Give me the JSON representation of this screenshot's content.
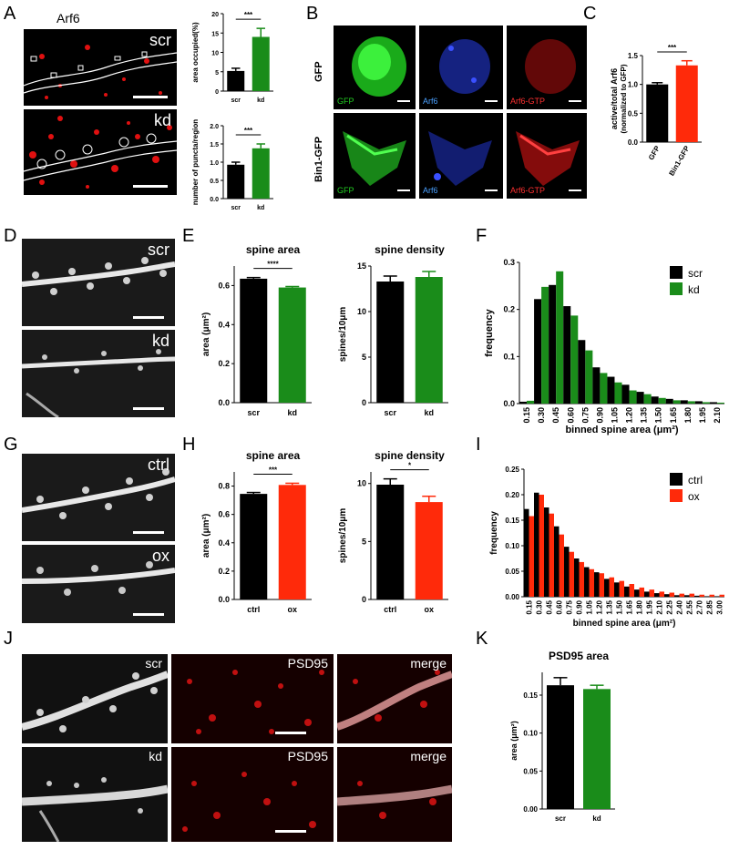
{
  "panels": {
    "A": {
      "letter": "A",
      "title": "Arf6",
      "top_label": "scr",
      "bottom_label": "kd"
    },
    "B": {
      "letter": "B",
      "row1_label": "GFP",
      "row2_label": "Bin1-GFP",
      "ch1": "GFP",
      "ch2": "Arf6",
      "ch3": "Arf6-GTP"
    },
    "C": {
      "letter": "C"
    },
    "D": {
      "letter": "D",
      "top_label": "scr",
      "bottom_label": "kd"
    },
    "E": {
      "letter": "E"
    },
    "F": {
      "letter": "F"
    },
    "G": {
      "letter": "G",
      "top_label": "ctrl",
      "bottom_label": "ox"
    },
    "H": {
      "letter": "H"
    },
    "I": {
      "letter": "I"
    },
    "J": {
      "letter": "J",
      "row1_label": "scr",
      "row2_label": "kd",
      "ch_psd": "PSD95",
      "ch_merge": "merge"
    },
    "K": {
      "letter": "K"
    }
  },
  "colors": {
    "black": "#000000",
    "green": "#1a8c1a",
    "red": "#ff2a0a",
    "gfp": "#22cc22",
    "arf6": "#2233cc",
    "arf6gtp": "#cc1111"
  },
  "chart_data": [
    {
      "id": "A1",
      "type": "bar",
      "categories": [
        "scr",
        "kd"
      ],
      "values": [
        5.2,
        14
      ],
      "errors": [
        0.7,
        2.2
      ],
      "colors": [
        "black",
        "green"
      ],
      "ylabel": "area occupied(%)",
      "ylim": [
        0,
        20
      ],
      "yticks": [
        0,
        5,
        10,
        15,
        20
      ],
      "yticklabels": [
        "0",
        "5",
        "10",
        "15",
        "20"
      ],
      "sig": "***"
    },
    {
      "id": "A2",
      "type": "bar",
      "categories": [
        "scr",
        "kd"
      ],
      "values": [
        0.93,
        1.38
      ],
      "errors": [
        0.07,
        0.12
      ],
      "colors": [
        "black",
        "green"
      ],
      "ylabel": "number of puncta/region",
      "ylim": [
        0,
        2
      ],
      "yticks": [
        0,
        0.5,
        1,
        1.5,
        2
      ],
      "yticklabels": [
        "0.0",
        "0.5",
        "1.0",
        "1.5",
        "2.0"
      ],
      "sig": "***"
    },
    {
      "id": "C",
      "type": "bar",
      "categories": [
        "GFP",
        "Bin1-GFP"
      ],
      "values": [
        1.0,
        1.33
      ],
      "errors": [
        0.03,
        0.08
      ],
      "colors": [
        "black",
        "red"
      ],
      "ylabel": "active/total Arf6",
      "ylabel2": "(normalized to GFP)",
      "ylim": [
        0,
        1.5
      ],
      "yticks": [
        0,
        0.5,
        1,
        1.5
      ],
      "yticklabels": [
        "0.0",
        "0.5",
        "1.0",
        "1.5"
      ],
      "sig": "***",
      "rotate_x": true
    },
    {
      "id": "E1",
      "type": "bar",
      "title": "spine area",
      "categories": [
        "scr",
        "kd"
      ],
      "values": [
        0.635,
        0.59
      ],
      "errors": [
        0.006,
        0.005
      ],
      "colors": [
        "black",
        "green"
      ],
      "ylabel": "area (μm²)",
      "ylim": [
        0,
        0.7
      ],
      "yticks": [
        0,
        0.2,
        0.4,
        0.6
      ],
      "yticklabels": [
        "0.0",
        "0.2",
        "0.4",
        "0.6"
      ],
      "sig": "****"
    },
    {
      "id": "E2",
      "type": "bar",
      "title": "spine density",
      "categories": [
        "scr",
        "kd"
      ],
      "values": [
        13.3,
        13.8
      ],
      "errors": [
        0.6,
        0.6
      ],
      "colors": [
        "black",
        "green"
      ],
      "ylabel": "spines/10μm",
      "ylim": [
        0,
        15
      ],
      "yticks": [
        0,
        5,
        10,
        15
      ],
      "yticklabels": [
        "0",
        "5",
        "10",
        "15"
      ]
    },
    {
      "id": "F",
      "type": "bar",
      "subtype": "histogram",
      "categories": [
        "0.15",
        "0.30",
        "0.45",
        "0.60",
        "0.75",
        "0.90",
        "1.05",
        "1.20",
        "1.35",
        "1.50",
        "1.65",
        "1.80",
        "1.95",
        "2.10"
      ],
      "series": [
        {
          "name": "scr",
          "color": "black",
          "values": [
            0.004,
            0.222,
            0.252,
            0.207,
            0.135,
            0.077,
            0.057,
            0.04,
            0.025,
            0.015,
            0.01,
            0.007,
            0.005,
            0.003
          ]
        },
        {
          "name": "kd",
          "color": "green",
          "values": [
            0.006,
            0.248,
            0.281,
            0.187,
            0.113,
            0.065,
            0.045,
            0.028,
            0.02,
            0.012,
            0.007,
            0.005,
            0.003,
            0.002
          ]
        }
      ],
      "ylabel": "frequency",
      "xlabel": "binned spine area (μm²)",
      "ylim": [
        0,
        0.3
      ],
      "yticks": [
        0,
        0.1,
        0.2,
        0.3
      ],
      "yticklabels": [
        "0.0",
        "0.1",
        "0.2",
        "0.3"
      ],
      "legend": "top-right"
    },
    {
      "id": "H1",
      "type": "bar",
      "title": "spine area",
      "categories": [
        "ctrl",
        "ox"
      ],
      "values": [
        0.745,
        0.808
      ],
      "errors": [
        0.01,
        0.012
      ],
      "colors": [
        "black",
        "red"
      ],
      "ylabel": "area (μm²)",
      "ylim": [
        0,
        0.9
      ],
      "yticks": [
        0,
        0.2,
        0.4,
        0.6,
        0.8
      ],
      "yticklabels": [
        "0.0",
        "0.2",
        "0.4",
        "0.6",
        "0.8"
      ],
      "sig": "***"
    },
    {
      "id": "H2",
      "type": "bar",
      "title": "spine density",
      "categories": [
        "ctrl",
        "ox"
      ],
      "values": [
        9.9,
        8.4
      ],
      "errors": [
        0.5,
        0.5
      ],
      "colors": [
        "black",
        "red"
      ],
      "ylabel": "spines/10μm",
      "ylim": [
        0,
        11
      ],
      "yticks": [
        0,
        5,
        10
      ],
      "yticklabels": [
        "0",
        "5",
        "10"
      ],
      "sig": "*"
    },
    {
      "id": "I",
      "type": "bar",
      "subtype": "histogram",
      "categories": [
        "0.15",
        "0.30",
        "0.45",
        "0.60",
        "0.75",
        "0.90",
        "1.05",
        "1.20",
        "1.35",
        "1.50",
        "1.65",
        "1.80",
        "1.95",
        "2.10",
        "2.25",
        "2.40",
        "2.55",
        "2.70",
        "2.85",
        "3.00"
      ],
      "series": [
        {
          "name": "ctrl",
          "color": "black",
          "values": [
            0.172,
            0.204,
            0.175,
            0.138,
            0.098,
            0.075,
            0.058,
            0.048,
            0.035,
            0.028,
            0.02,
            0.014,
            0.01,
            0.007,
            0.005,
            0.003,
            0.003,
            0.002,
            0.001,
            0.001
          ]
        },
        {
          "name": "ox",
          "color": "red",
          "values": [
            0.158,
            0.2,
            0.163,
            0.122,
            0.088,
            0.068,
            0.054,
            0.046,
            0.038,
            0.031,
            0.025,
            0.018,
            0.014,
            0.01,
            0.008,
            0.006,
            0.006,
            0.004,
            0.004,
            0.004
          ]
        }
      ],
      "ylabel": "frequency",
      "xlabel": "binned spine area (μm²)",
      "ylim": [
        0,
        0.25
      ],
      "yticks": [
        0,
        0.05,
        0.1,
        0.15,
        0.2,
        0.25
      ],
      "yticklabels": [
        "0.00",
        "0.05",
        "0.10",
        "0.15",
        "0.20",
        "0.25"
      ],
      "legend": "top-right"
    },
    {
      "id": "K",
      "type": "bar",
      "title": "PSD95 area",
      "categories": [
        "scr",
        "kd"
      ],
      "values": [
        0.163,
        0.158
      ],
      "errors": [
        0.01,
        0.005
      ],
      "colors": [
        "black",
        "green"
      ],
      "ylabel": "area (μm²)",
      "ylim": [
        0,
        0.18
      ],
      "yticks": [
        0,
        0.05,
        0.1,
        0.15
      ],
      "yticklabels": [
        "0.00",
        "0.05",
        "0.10",
        "0.15"
      ]
    }
  ]
}
